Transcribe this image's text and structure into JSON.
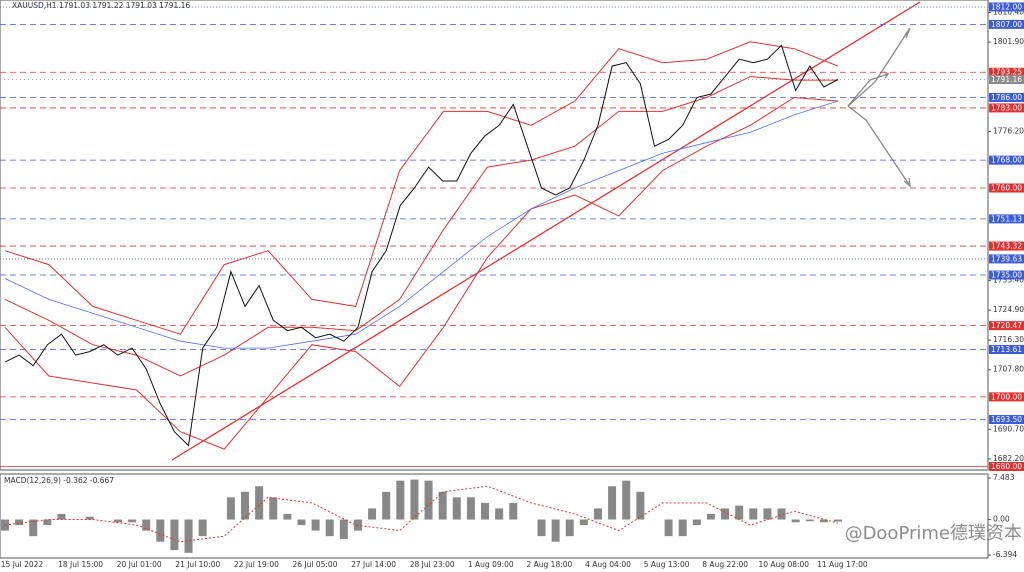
{
  "chart_data": {
    "type": "line",
    "title": "XAUUSD,H1  1791.03 1791.22 1791.03 1791.16",
    "ylim": [
      1679,
      1814
    ],
    "yticks": [
      {
        "value": 1810.4,
        "label": "1810.40"
      },
      {
        "value": 1801.9,
        "label": "1801.90"
      },
      {
        "value": 1776.2,
        "label": "1776.20"
      },
      {
        "value": 1733.4,
        "label": "1733.40"
      },
      {
        "value": 1724.9,
        "label": "1724.90"
      },
      {
        "value": 1716.3,
        "label": "1716.30"
      },
      {
        "value": 1707.8,
        "label": "1707.80"
      },
      {
        "value": 1690.7,
        "label": "1690.70"
      },
      {
        "value": 1682.2,
        "label": "1682.20"
      }
    ],
    "categories": [
      "15 Jul 2022",
      "18 Jul 15:00",
      "20 Jul 01:00",
      "21 Jul 10:00",
      "22 Jul 19:00",
      "26 Jul 05:00",
      "27 Jul 14:00",
      "28 Jul 23:00",
      "1 Aug 09:00",
      "2 Aug 18:00",
      "4 Aug 04:00",
      "5 Aug 13:00",
      "8 Aug 22:00",
      "10 Aug 08:00",
      "11 Aug 17:00"
    ],
    "levels": [
      {
        "value": 1812,
        "label": "1812.00",
        "color": "#3b5bdb",
        "dash": "1 2"
      },
      {
        "value": 1807,
        "label": "1807.00",
        "color": "#3b5bdb",
        "dash": "6 4"
      },
      {
        "value": 1793.25,
        "label": "1793.25",
        "color": "#e03131",
        "dash": "6 4"
      },
      {
        "value": 1791.16,
        "label": "1791.16",
        "color": "#8a8a8a",
        "dash": "1 3"
      },
      {
        "value": 1786,
        "label": "1786.00",
        "color": "#3b5bdb",
        "dash": "6 4"
      },
      {
        "value": 1783,
        "label": "1783.00",
        "color": "#e03131",
        "dash": "6 4"
      },
      {
        "value": 1768,
        "label": "1768.00",
        "color": "#3b5bdb",
        "dash": "6 4"
      },
      {
        "value": 1760,
        "label": "1760.00",
        "color": "#e03131",
        "dash": "6 4"
      },
      {
        "value": 1751.13,
        "label": "1751.13",
        "color": "#3b5bdb",
        "dash": "6 4"
      },
      {
        "value": 1743.32,
        "label": "1743.32",
        "color": "#e03131",
        "dash": "6 4"
      },
      {
        "value": 1739.63,
        "label": "1739.63",
        "color": "#3b5bdb",
        "dash": "1 2"
      },
      {
        "value": 1735,
        "label": "1735.00",
        "color": "#3b5bdb",
        "dash": "6 4"
      },
      {
        "value": 1720.47,
        "label": "1720.47",
        "color": "#e03131",
        "dash": "6 4"
      },
      {
        "value": 1713.61,
        "label": "1713.61",
        "color": "#3b5bdb",
        "dash": "6 4"
      },
      {
        "value": 1700,
        "label": "1700.00",
        "color": "#e03131",
        "dash": "6 4"
      },
      {
        "value": 1693.5,
        "label": "1693.50",
        "color": "#3b5bdb",
        "dash": "6 4"
      },
      {
        "value": 1680,
        "label": "1680.00",
        "color": "#e03131",
        "dash": "none"
      }
    ],
    "price": {
      "color": "#111111",
      "values": [
        1710,
        1712,
        1709,
        1715,
        1718,
        1712,
        1713,
        1715,
        1712,
        1714,
        1708,
        1698,
        1690,
        1686,
        1714,
        1720,
        1736,
        1726,
        1732,
        1722,
        1719,
        1720,
        1717,
        1718,
        1716,
        1720,
        1736,
        1742,
        1755,
        1760,
        1766,
        1762,
        1762,
        1770,
        1775,
        1778,
        1784,
        1772,
        1760,
        1758,
        1760,
        1768,
        1778,
        1795,
        1796,
        1790,
        1772,
        1774,
        1778,
        1786,
        1787,
        1792,
        1797,
        1796,
        1797,
        1801,
        1788,
        1795,
        1789,
        1791.16
      ]
    },
    "bands": [
      {
        "color": "#e03131",
        "values": [
          1742,
          1738,
          1726,
          1722,
          1718,
          1738,
          1742,
          1728,
          1726,
          1765,
          1782,
          1782,
          1778,
          1785,
          1800,
          1796,
          1797,
          1802,
          1800,
          1795
        ]
      },
      {
        "color": "#e03131",
        "values": [
          1728,
          1722,
          1715,
          1712,
          1706,
          1712,
          1720,
          1720,
          1719,
          1728,
          1748,
          1766,
          1768,
          1772,
          1782,
          1782,
          1786,
          1792,
          1791,
          1791
        ]
      },
      {
        "color": "#e03131",
        "values": [
          1720,
          1706,
          1704,
          1702,
          1690,
          1685,
          1700,
          1715,
          1713,
          1703,
          1720,
          1740,
          1754,
          1758,
          1752,
          1765,
          1772,
          1778,
          1786,
          1785
        ]
      },
      {
        "color": "#4c6ef5",
        "values": [
          1734,
          1728,
          1724,
          1720,
          1716,
          1714,
          1714,
          1716,
          1718,
          1726,
          1736,
          1746,
          1754,
          1760,
          1765,
          1770,
          1773,
          1776,
          1781,
          1785
        ]
      }
    ],
    "macd": {
      "label": "MACD(12,26,9) -0.362 -0.667",
      "ylim": [
        -6.394,
        7.483
      ],
      "yticks": [
        7.483,
        {
          "value": 0,
          "label": "0.00"
        },
        -6.394
      ],
      "color": "#888888",
      "values": [
        -2,
        -1,
        -3,
        -1,
        1,
        0,
        0.5,
        0,
        -0.5,
        -0.5,
        -2,
        -4,
        -5.5,
        -6,
        -3,
        0,
        4,
        5,
        6,
        4,
        1,
        -1,
        -2,
        -3,
        -3.5,
        -2,
        2,
        5,
        7,
        7.2,
        7,
        5,
        4,
        4,
        3,
        2,
        3,
        0,
        -3,
        -4,
        -3,
        -1,
        2,
        6,
        7,
        5,
        0,
        -3,
        -3,
        -1,
        1,
        2,
        2.5,
        2,
        2,
        2,
        -0.5,
        -0.3,
        -0.5,
        -0.362
      ],
      "signal": {
        "color": "#e03131",
        "values": [
          -1,
          0,
          0,
          -1,
          -4,
          -3,
          4,
          3,
          -1,
          -2,
          5,
          6,
          3,
          1,
          -2,
          3,
          3,
          -1,
          1.5,
          -0.667
        ]
      }
    },
    "watermark": "@DooPrime德璞资本"
  }
}
